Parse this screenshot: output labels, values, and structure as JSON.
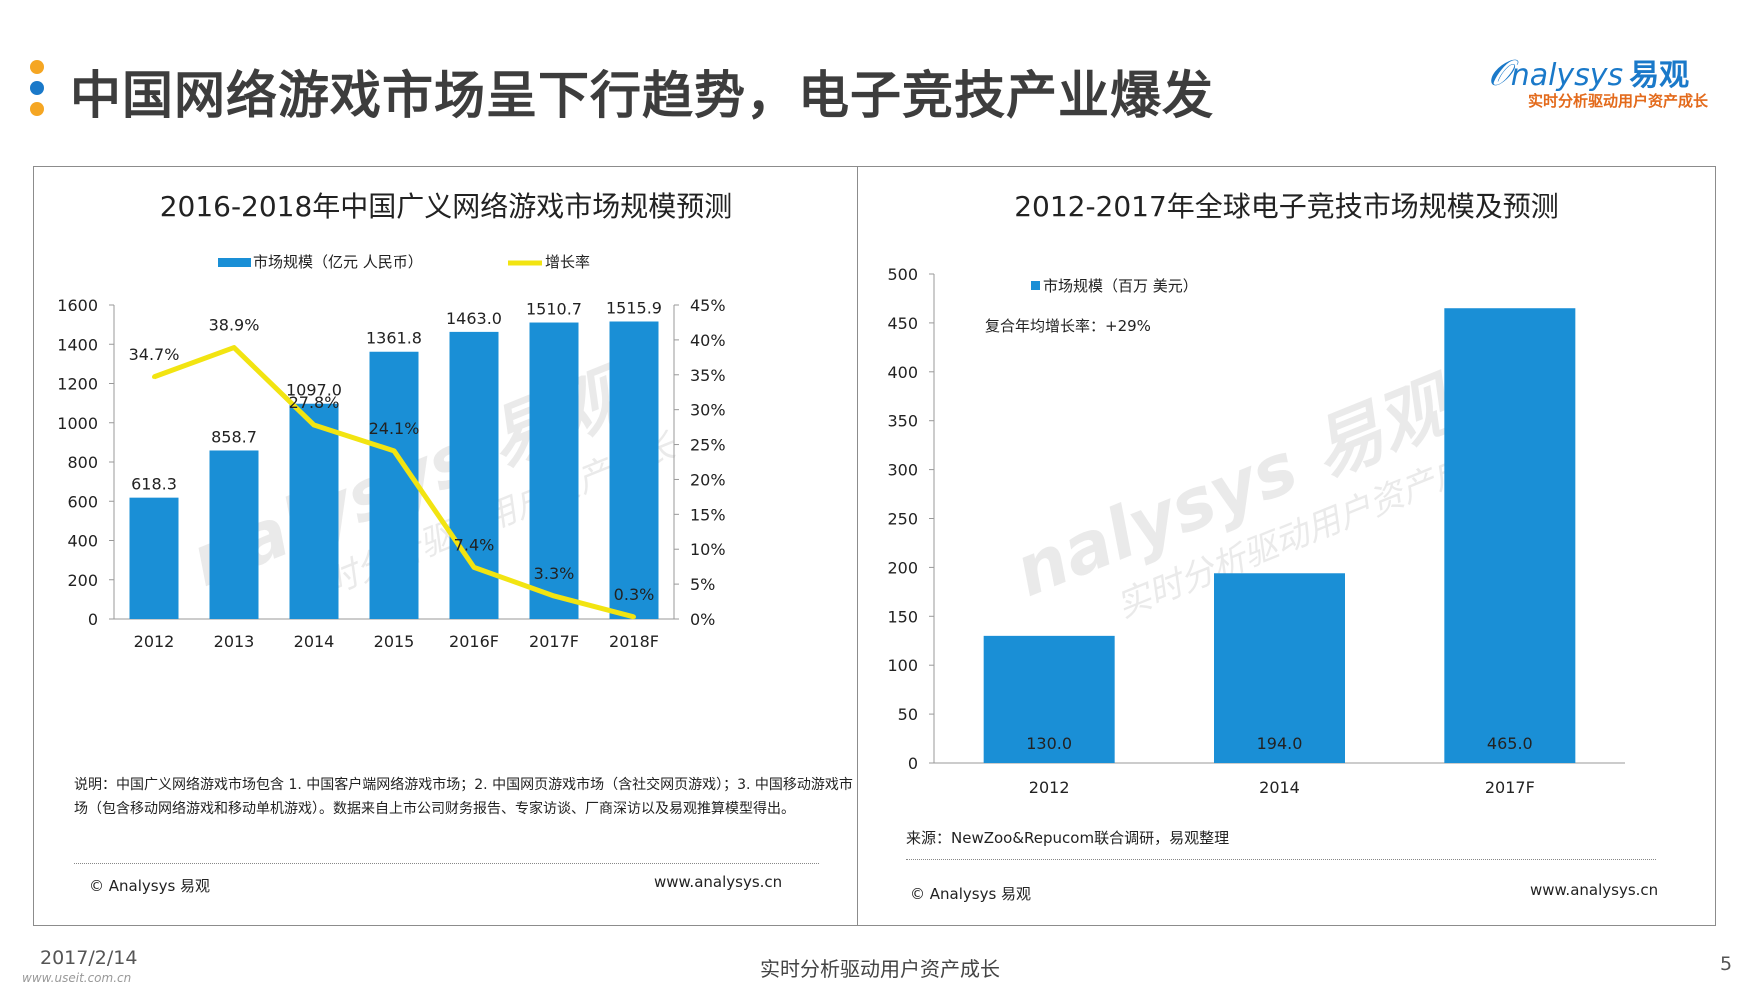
{
  "page": {
    "title": "中国网络游戏市场呈下行趋势，电子竞技产业爆发",
    "dot_colors": [
      "#f5a623",
      "#1a79c9",
      "#f5a623"
    ],
    "logo_text": "nalysys",
    "logo_cn": "易观",
    "logo_tagline": "实时分析驱动用户资产成长",
    "footer_date": "2017/2/14",
    "footer_site": "www.useit.com.cn",
    "footer_center": "实时分析驱动用户资产成长",
    "page_number": "5",
    "watermark_text": "nalysys 易观",
    "watermark_sub": "实时分析驱动用户资产成长"
  },
  "left_panel": {
    "note": "说明：中国广义网络游戏市场包含 1. 中国客户端网络游戏市场；2. 中国网页游戏市场（含社交网页游戏）；3. 中国移动游戏市场（包含移动网络游戏和移动单机游戏）。数据来自上市公司财务报告、专家访谈、厂商深访以及易观推算模型得出。",
    "copyright": "© Analysys 易观",
    "website": "www.analysys.cn"
  },
  "right_panel": {
    "source": "来源：NewZoo&Repucom联合调研，易观整理",
    "copyright": "© Analysys 易观",
    "website": "www.analysys.cn"
  },
  "colors": {
    "bar": "#1a8fd6",
    "line": "#f2e411",
    "axis": "#999999"
  },
  "chart_data": [
    {
      "type": "bar",
      "title": "2016-2018年中国广义网络游戏市场规模预测",
      "categories": [
        "2012",
        "2013",
        "2014",
        "2015",
        "2016F",
        "2017F",
        "2018F"
      ],
      "series": [
        {
          "name": "市场规模（亿元 人民币）",
          "type": "bar",
          "axis": "left",
          "values": [
            618.3,
            858.7,
            1097.0,
            1361.8,
            1463.0,
            1510.7,
            1515.9
          ],
          "labels": [
            "618.3",
            "858.7",
            "1097.0",
            "1361.8",
            "1463.0",
            "1510.7",
            "1515.9"
          ]
        },
        {
          "name": "增长率",
          "type": "line",
          "axis": "right",
          "values": [
            34.7,
            38.9,
            27.8,
            24.1,
            7.4,
            3.3,
            0.3
          ],
          "labels": [
            "34.7%",
            "38.9%",
            "27.8%",
            "24.1%",
            "7.4%",
            "3.3%",
            "0.3%"
          ]
        }
      ],
      "ylim_left": [
        0,
        1600
      ],
      "yticks_left": [
        "0",
        "200",
        "400",
        "600",
        "800",
        "1000",
        "1200",
        "1400",
        "1600"
      ],
      "ylim_right": [
        0,
        45
      ],
      "yticks_right": [
        "0%",
        "5%",
        "10%",
        "15%",
        "20%",
        "25%",
        "30%",
        "35%",
        "40%",
        "45%"
      ],
      "legend_position": "top"
    },
    {
      "type": "bar",
      "title": "2012-2017年全球电子竞技市场规模及预测",
      "categories": [
        "2012",
        "2014",
        "2017F"
      ],
      "series": [
        {
          "name": "市场规模（百万 美元）",
          "values": [
            130.0,
            194.0,
            465.0
          ],
          "labels": [
            "130.0",
            "194.0",
            "465.0"
          ]
        }
      ],
      "annotation": "复合年均增长率：+29%",
      "ylim": [
        0,
        500
      ],
      "yticks": [
        "0",
        "50",
        "100",
        "150",
        "200",
        "250",
        "300",
        "350",
        "400",
        "450",
        "500"
      ],
      "legend_position": "top-left"
    }
  ]
}
